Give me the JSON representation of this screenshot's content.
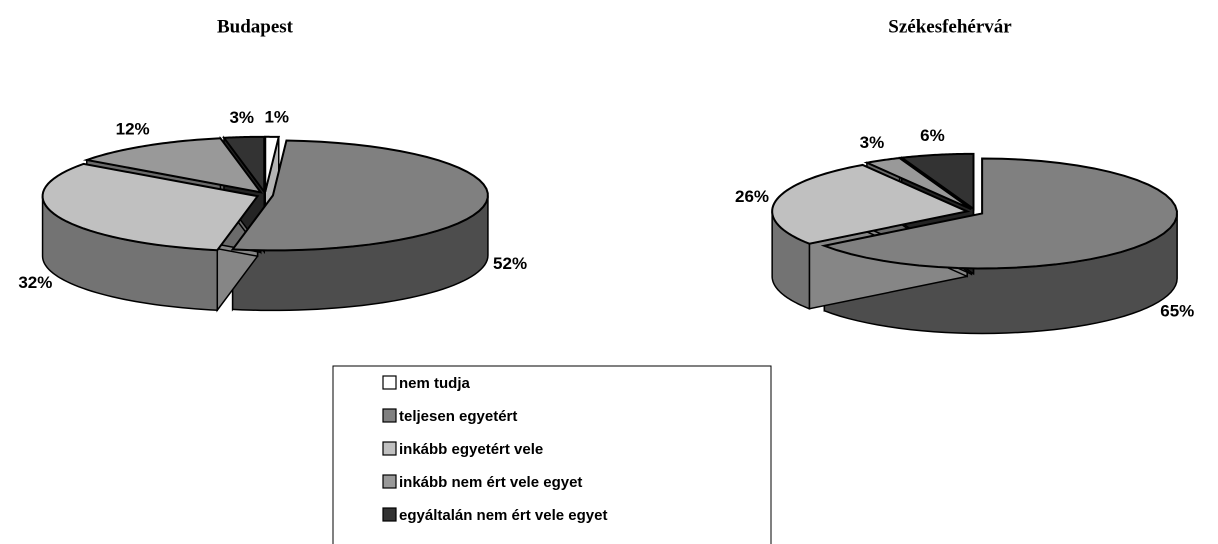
{
  "chart_data": [
    {
      "type": "pie",
      "title": "Budapest",
      "categories": [
        "nem tudja",
        "teljesen egyetért",
        "inkább egyetért vele",
        "inkább nem ért vele egyet",
        "egyáltalán nem ért vele egyet"
      ],
      "values": [
        1,
        52,
        32,
        12,
        3
      ],
      "value_labels": [
        "1%",
        "52%",
        "32%",
        "12%",
        "3%"
      ],
      "colors": [
        "#ffffff",
        "#808080",
        "#c0c0c0",
        "#999999",
        "#333333"
      ]
    },
    {
      "type": "pie",
      "title": "Székesfehérvár",
      "categories": [
        "nem tudja",
        "teljesen egyetért",
        "inkább egyetért vele",
        "inkább nem ért vele egyet",
        "egyáltalán nem ért vele egyet"
      ],
      "values": [
        null,
        65,
        26,
        3,
        6
      ],
      "value_labels": [
        null,
        "65%",
        "26%",
        "3%",
        "6%"
      ],
      "colors": [
        "#ffffff",
        "#808080",
        "#c0c0c0",
        "#999999",
        "#333333"
      ]
    }
  ]
}
